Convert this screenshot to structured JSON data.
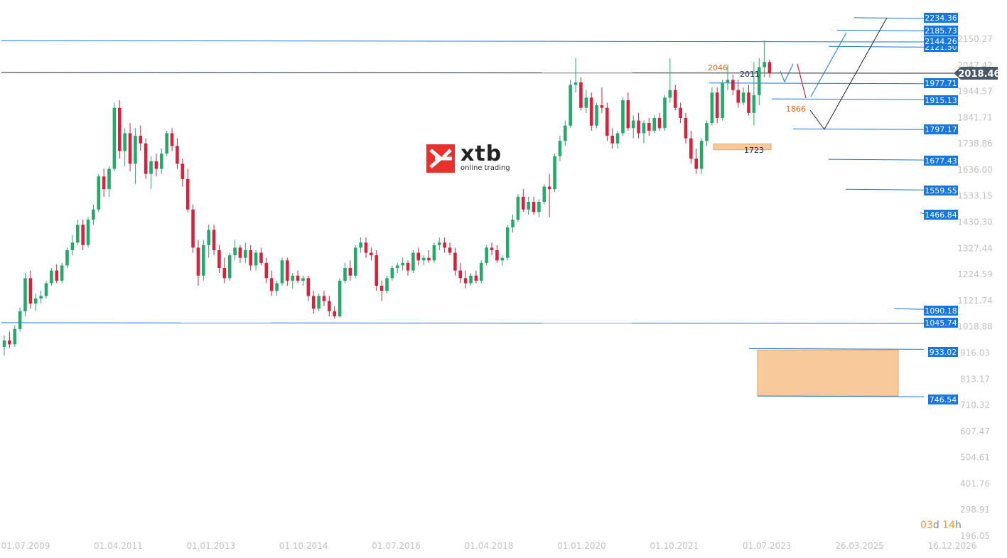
{
  "brand": {
    "name": "xtb",
    "tagline": "online trading",
    "color": "#e8312c"
  },
  "countdown": {
    "days": "03",
    "days_unit": "d",
    "hours": "14",
    "hours_unit": "h"
  },
  "chart_data": {
    "type": "candlestick",
    "title": "",
    "xlabel": "",
    "ylabel": "",
    "ylim": [
      196.05,
      2245
    ],
    "current_price": "2018.46",
    "y_ticks": [
      "2150.27",
      "2047.42",
      "1944.57",
      "1841.71",
      "1738.86",
      "1636.00",
      "1533.15",
      "1430.30",
      "1327.44",
      "1224.59",
      "1121.74",
      "1018.88",
      "916.03",
      "813.17",
      "710.32",
      "607.47",
      "504.61",
      "401.76",
      "298.91",
      "196.05"
    ],
    "x_ticks": [
      "01.07.2009",
      "01.04.2011",
      "01.01.2013",
      "01.10.2014",
      "01.07.2016",
      "01.04.2018",
      "01.01.2020",
      "01.10.2021",
      "01.07.2023",
      "26.03.2025",
      "16.12.2026"
    ],
    "price_levels": [
      "2234.36",
      "2185.73",
      "2144.26",
      "2121.50",
      "1977.71",
      "1915.13",
      "1797.17",
      "1677.43",
      "1559.55",
      "1466.84",
      "1090.18",
      "1045.74",
      "933.02",
      "746.54"
    ],
    "annotations": {
      "a2046": "2046",
      "a2011": "2011",
      "a1866": "1866",
      "a1723": "1723"
    },
    "colors": {
      "up": "#26a86a",
      "down": "#d6223d",
      "level": "#1677e0",
      "zone": "#f8c99a",
      "price_tag": "#4a5866",
      "annotation_orange": "#e06a1c",
      "annotation_navy": "#1a2a5c"
    },
    "series": [
      {
        "o": 940,
        "h": 985,
        "l": 905,
        "c": 965
      },
      {
        "o": 965,
        "h": 1000,
        "l": 935,
        "c": 950
      },
      {
        "o": 950,
        "h": 1025,
        "l": 940,
        "c": 1010
      },
      {
        "o": 1010,
        "h": 1095,
        "l": 1000,
        "c": 1080
      },
      {
        "o": 1080,
        "h": 1230,
        "l": 1060,
        "c": 1210
      },
      {
        "o": 1210,
        "h": 1240,
        "l": 1090,
        "c": 1110
      },
      {
        "o": 1110,
        "h": 1150,
        "l": 1080,
        "c": 1130
      },
      {
        "o": 1130,
        "h": 1160,
        "l": 1110,
        "c": 1140
      },
      {
        "o": 1140,
        "h": 1200,
        "l": 1130,
        "c": 1190
      },
      {
        "o": 1190,
        "h": 1250,
        "l": 1180,
        "c": 1240
      },
      {
        "o": 1240,
        "h": 1265,
        "l": 1190,
        "c": 1200
      },
      {
        "o": 1200,
        "h": 1270,
        "l": 1190,
        "c": 1260
      },
      {
        "o": 1260,
        "h": 1330,
        "l": 1250,
        "c": 1320
      },
      {
        "o": 1320,
        "h": 1380,
        "l": 1300,
        "c": 1350
      },
      {
        "o": 1350,
        "h": 1440,
        "l": 1340,
        "c": 1420
      },
      {
        "o": 1420,
        "h": 1440,
        "l": 1320,
        "c": 1340
      },
      {
        "o": 1340,
        "h": 1450,
        "l": 1330,
        "c": 1440
      },
      {
        "o": 1440,
        "h": 1500,
        "l": 1420,
        "c": 1480
      },
      {
        "o": 1480,
        "h": 1620,
        "l": 1470,
        "c": 1610
      },
      {
        "o": 1610,
        "h": 1640,
        "l": 1530,
        "c": 1560
      },
      {
        "o": 1560,
        "h": 1650,
        "l": 1530,
        "c": 1640
      },
      {
        "o": 1640,
        "h": 1900,
        "l": 1630,
        "c": 1880
      },
      {
        "o": 1880,
        "h": 1910,
        "l": 1680,
        "c": 1710
      },
      {
        "o": 1710,
        "h": 1800,
        "l": 1650,
        "c": 1780
      },
      {
        "o": 1780,
        "h": 1820,
        "l": 1630,
        "c": 1660
      },
      {
        "o": 1660,
        "h": 1800,
        "l": 1580,
        "c": 1770
      },
      {
        "o": 1770,
        "h": 1810,
        "l": 1710,
        "c": 1740
      },
      {
        "o": 1740,
        "h": 1760,
        "l": 1600,
        "c": 1620
      },
      {
        "o": 1620,
        "h": 1690,
        "l": 1560,
        "c": 1670
      },
      {
        "o": 1670,
        "h": 1700,
        "l": 1610,
        "c": 1640
      },
      {
        "o": 1640,
        "h": 1720,
        "l": 1620,
        "c": 1700
      },
      {
        "o": 1700,
        "h": 1790,
        "l": 1690,
        "c": 1780
      },
      {
        "o": 1780,
        "h": 1800,
        "l": 1710,
        "c": 1730
      },
      {
        "o": 1730,
        "h": 1760,
        "l": 1640,
        "c": 1660
      },
      {
        "o": 1660,
        "h": 1680,
        "l": 1570,
        "c": 1600
      },
      {
        "o": 1600,
        "h": 1640,
        "l": 1470,
        "c": 1480
      },
      {
        "o": 1480,
        "h": 1500,
        "l": 1310,
        "c": 1330
      },
      {
        "o": 1330,
        "h": 1360,
        "l": 1180,
        "c": 1220
      },
      {
        "o": 1220,
        "h": 1360,
        "l": 1200,
        "c": 1340
      },
      {
        "o": 1340,
        "h": 1420,
        "l": 1290,
        "c": 1400
      },
      {
        "o": 1400,
        "h": 1420,
        "l": 1300,
        "c": 1320
      },
      {
        "o": 1320,
        "h": 1340,
        "l": 1230,
        "c": 1250
      },
      {
        "o": 1250,
        "h": 1290,
        "l": 1190,
        "c": 1210
      },
      {
        "o": 1210,
        "h": 1310,
        "l": 1200,
        "c": 1300
      },
      {
        "o": 1300,
        "h": 1360,
        "l": 1280,
        "c": 1330
      },
      {
        "o": 1330,
        "h": 1340,
        "l": 1270,
        "c": 1290
      },
      {
        "o": 1290,
        "h": 1350,
        "l": 1270,
        "c": 1320
      },
      {
        "o": 1320,
        "h": 1340,
        "l": 1240,
        "c": 1260
      },
      {
        "o": 1260,
        "h": 1320,
        "l": 1240,
        "c": 1310
      },
      {
        "o": 1310,
        "h": 1330,
        "l": 1260,
        "c": 1270
      },
      {
        "o": 1270,
        "h": 1290,
        "l": 1190,
        "c": 1210
      },
      {
        "o": 1210,
        "h": 1240,
        "l": 1140,
        "c": 1160
      },
      {
        "o": 1160,
        "h": 1200,
        "l": 1140,
        "c": 1190
      },
      {
        "o": 1190,
        "h": 1290,
        "l": 1180,
        "c": 1280
      },
      {
        "o": 1280,
        "h": 1290,
        "l": 1180,
        "c": 1200
      },
      {
        "o": 1200,
        "h": 1230,
        "l": 1170,
        "c": 1220
      },
      {
        "o": 1220,
        "h": 1240,
        "l": 1190,
        "c": 1200
      },
      {
        "o": 1200,
        "h": 1220,
        "l": 1180,
        "c": 1210
      },
      {
        "o": 1210,
        "h": 1220,
        "l": 1120,
        "c": 1140
      },
      {
        "o": 1140,
        "h": 1160,
        "l": 1070,
        "c": 1090
      },
      {
        "o": 1090,
        "h": 1150,
        "l": 1080,
        "c": 1140
      },
      {
        "o": 1140,
        "h": 1160,
        "l": 1100,
        "c": 1120
      },
      {
        "o": 1120,
        "h": 1140,
        "l": 1060,
        "c": 1080
      },
      {
        "o": 1080,
        "h": 1100,
        "l": 1050,
        "c": 1060
      },
      {
        "o": 1060,
        "h": 1210,
        "l": 1055,
        "c": 1200
      },
      {
        "o": 1200,
        "h": 1270,
        "l": 1190,
        "c": 1250
      },
      {
        "o": 1250,
        "h": 1280,
        "l": 1200,
        "c": 1220
      },
      {
        "o": 1220,
        "h": 1340,
        "l": 1210,
        "c": 1330
      },
      {
        "o": 1330,
        "h": 1370,
        "l": 1310,
        "c": 1350
      },
      {
        "o": 1350,
        "h": 1370,
        "l": 1290,
        "c": 1310
      },
      {
        "o": 1310,
        "h": 1330,
        "l": 1280,
        "c": 1300
      },
      {
        "o": 1300,
        "h": 1320,
        "l": 1160,
        "c": 1180
      },
      {
        "o": 1180,
        "h": 1200,
        "l": 1120,
        "c": 1160
      },
      {
        "o": 1160,
        "h": 1220,
        "l": 1150,
        "c": 1210
      },
      {
        "o": 1210,
        "h": 1260,
        "l": 1200,
        "c": 1250
      },
      {
        "o": 1250,
        "h": 1270,
        "l": 1230,
        "c": 1260
      },
      {
        "o": 1260,
        "h": 1290,
        "l": 1240,
        "c": 1270
      },
      {
        "o": 1270,
        "h": 1280,
        "l": 1220,
        "c": 1240
      },
      {
        "o": 1240,
        "h": 1320,
        "l": 1230,
        "c": 1310
      },
      {
        "o": 1310,
        "h": 1330,
        "l": 1260,
        "c": 1280
      },
      {
        "o": 1280,
        "h": 1300,
        "l": 1260,
        "c": 1290
      },
      {
        "o": 1290,
        "h": 1320,
        "l": 1270,
        "c": 1280
      },
      {
        "o": 1280,
        "h": 1350,
        "l": 1270,
        "c": 1340
      },
      {
        "o": 1340,
        "h": 1370,
        "l": 1320,
        "c": 1350
      },
      {
        "o": 1350,
        "h": 1370,
        "l": 1310,
        "c": 1330
      },
      {
        "o": 1330,
        "h": 1350,
        "l": 1300,
        "c": 1310
      },
      {
        "o": 1310,
        "h": 1330,
        "l": 1220,
        "c": 1240
      },
      {
        "o": 1240,
        "h": 1270,
        "l": 1190,
        "c": 1210
      },
      {
        "o": 1210,
        "h": 1240,
        "l": 1170,
        "c": 1190
      },
      {
        "o": 1190,
        "h": 1230,
        "l": 1180,
        "c": 1220
      },
      {
        "o": 1220,
        "h": 1240,
        "l": 1190,
        "c": 1200
      },
      {
        "o": 1200,
        "h": 1280,
        "l": 1190,
        "c": 1270
      },
      {
        "o": 1270,
        "h": 1340,
        "l": 1260,
        "c": 1330
      },
      {
        "o": 1330,
        "h": 1350,
        "l": 1300,
        "c": 1320
      },
      {
        "o": 1320,
        "h": 1340,
        "l": 1270,
        "c": 1280
      },
      {
        "o": 1280,
        "h": 1300,
        "l": 1260,
        "c": 1290
      },
      {
        "o": 1290,
        "h": 1420,
        "l": 1280,
        "c": 1410
      },
      {
        "o": 1410,
        "h": 1460,
        "l": 1390,
        "c": 1440
      },
      {
        "o": 1440,
        "h": 1540,
        "l": 1430,
        "c": 1530
      },
      {
        "o": 1530,
        "h": 1560,
        "l": 1470,
        "c": 1480
      },
      {
        "o": 1480,
        "h": 1530,
        "l": 1460,
        "c": 1510
      },
      {
        "o": 1510,
        "h": 1530,
        "l": 1460,
        "c": 1470
      },
      {
        "o": 1470,
        "h": 1520,
        "l": 1450,
        "c": 1510
      },
      {
        "o": 1510,
        "h": 1580,
        "l": 1500,
        "c": 1570
      },
      {
        "o": 1570,
        "h": 1620,
        "l": 1450,
        "c": 1560
      },
      {
        "o": 1560,
        "h": 1700,
        "l": 1550,
        "c": 1690
      },
      {
        "o": 1690,
        "h": 1770,
        "l": 1670,
        "c": 1750
      },
      {
        "o": 1750,
        "h": 1830,
        "l": 1730,
        "c": 1810
      },
      {
        "o": 1810,
        "h": 1990,
        "l": 1800,
        "c": 1970
      },
      {
        "o": 1970,
        "h": 2075,
        "l": 1940,
        "c": 1980
      },
      {
        "o": 1980,
        "h": 2000,
        "l": 1870,
        "c": 1880
      },
      {
        "o": 1880,
        "h": 1950,
        "l": 1860,
        "c": 1920
      },
      {
        "o": 1920,
        "h": 1940,
        "l": 1790,
        "c": 1810
      },
      {
        "o": 1810,
        "h": 1900,
        "l": 1800,
        "c": 1890
      },
      {
        "o": 1890,
        "h": 1960,
        "l": 1860,
        "c": 1880
      },
      {
        "o": 1880,
        "h": 1900,
        "l": 1750,
        "c": 1770
      },
      {
        "o": 1770,
        "h": 1800,
        "l": 1720,
        "c": 1740
      },
      {
        "o": 1740,
        "h": 1790,
        "l": 1720,
        "c": 1780
      },
      {
        "o": 1780,
        "h": 1920,
        "l": 1770,
        "c": 1910
      },
      {
        "o": 1910,
        "h": 1940,
        "l": 1790,
        "c": 1800
      },
      {
        "o": 1800,
        "h": 1850,
        "l": 1760,
        "c": 1830
      },
      {
        "o": 1830,
        "h": 1860,
        "l": 1760,
        "c": 1780
      },
      {
        "o": 1780,
        "h": 1830,
        "l": 1740,
        "c": 1820
      },
      {
        "o": 1820,
        "h": 1840,
        "l": 1770,
        "c": 1790
      },
      {
        "o": 1790,
        "h": 1850,
        "l": 1780,
        "c": 1840
      },
      {
        "o": 1840,
        "h": 1860,
        "l": 1790,
        "c": 1800
      },
      {
        "o": 1800,
        "h": 1930,
        "l": 1790,
        "c": 1920
      },
      {
        "o": 1920,
        "h": 2075,
        "l": 1900,
        "c": 1950
      },
      {
        "o": 1950,
        "h": 1970,
        "l": 1870,
        "c": 1880
      },
      {
        "o": 1880,
        "h": 1900,
        "l": 1820,
        "c": 1840
      },
      {
        "o": 1840,
        "h": 1860,
        "l": 1740,
        "c": 1760
      },
      {
        "o": 1760,
        "h": 1790,
        "l": 1660,
        "c": 1680
      },
      {
        "o": 1680,
        "h": 1720,
        "l": 1620,
        "c": 1640
      },
      {
        "o": 1640,
        "h": 1760,
        "l": 1620,
        "c": 1750
      },
      {
        "o": 1750,
        "h": 1830,
        "l": 1730,
        "c": 1820
      },
      {
        "o": 1820,
        "h": 1960,
        "l": 1810,
        "c": 1940
      },
      {
        "o": 1940,
        "h": 1960,
        "l": 1820,
        "c": 1840
      },
      {
        "o": 1840,
        "h": 1990,
        "l": 1830,
        "c": 1980
      },
      {
        "o": 1980,
        "h": 2050,
        "l": 1950,
        "c": 1990
      },
      {
        "o": 1990,
        "h": 2010,
        "l": 1930,
        "c": 1950
      },
      {
        "o": 1950,
        "h": 1990,
        "l": 1880,
        "c": 1900
      },
      {
        "o": 1900,
        "h": 1960,
        "l": 1890,
        "c": 1940
      },
      {
        "o": 1940,
        "h": 1970,
        "l": 1850,
        "c": 1860
      },
      {
        "o": 1860,
        "h": 2060,
        "l": 1810,
        "c": 1930
      },
      {
        "o": 1930,
        "h": 2075,
        "l": 1890,
        "c": 2040
      },
      {
        "o": 2040,
        "h": 2145,
        "l": 2000,
        "c": 2060
      },
      {
        "o": 2060,
        "h": 2070,
        "l": 2000,
        "c": 2018
      }
    ]
  }
}
